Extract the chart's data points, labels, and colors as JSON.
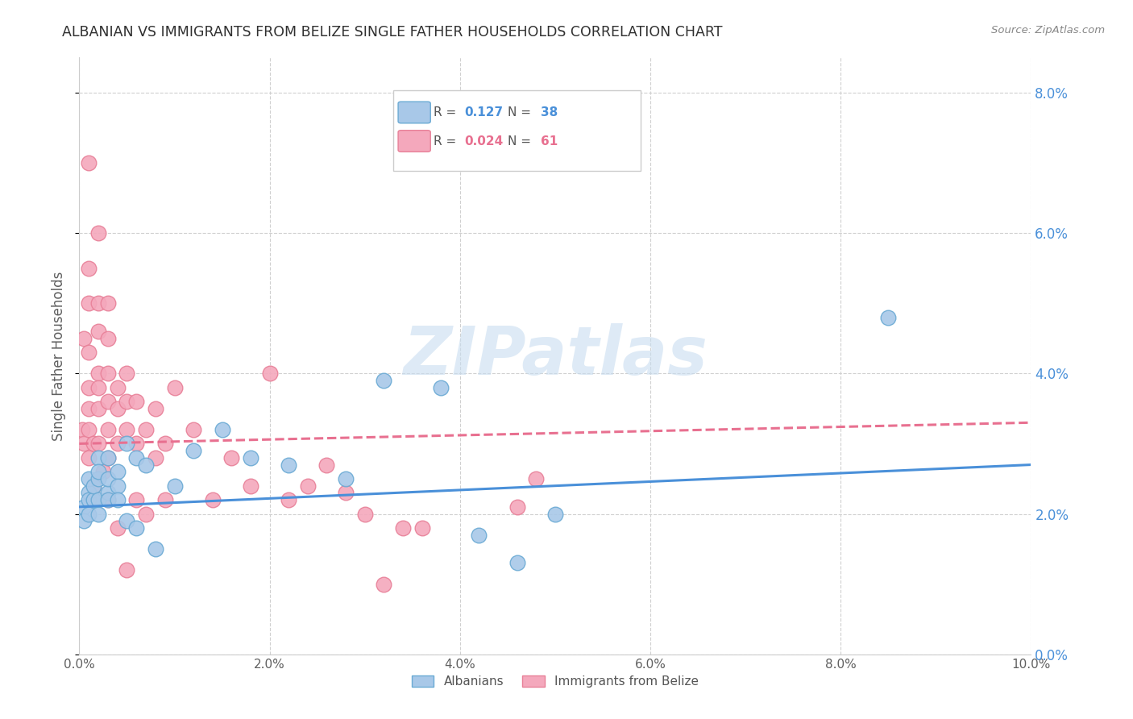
{
  "title": "ALBANIAN VS IMMIGRANTS FROM BELIZE SINGLE FATHER HOUSEHOLDS CORRELATION CHART",
  "source": "Source: ZipAtlas.com",
  "ylabel": "Single Father Households",
  "xlim": [
    0.0,
    0.1
  ],
  "ylim": [
    0.0,
    0.085
  ],
  "yticks": [
    0.0,
    0.02,
    0.04,
    0.06,
    0.08
  ],
  "xticks": [
    0.0,
    0.02,
    0.04,
    0.06,
    0.08,
    0.1
  ],
  "R_albanian": 0.127,
  "N_albanian": 38,
  "R_belize": 0.024,
  "N_belize": 61,
  "albanian_x": [
    0.0005,
    0.0005,
    0.001,
    0.001,
    0.001,
    0.001,
    0.0015,
    0.0015,
    0.002,
    0.002,
    0.002,
    0.002,
    0.002,
    0.003,
    0.003,
    0.003,
    0.003,
    0.004,
    0.004,
    0.004,
    0.005,
    0.005,
    0.006,
    0.006,
    0.007,
    0.008,
    0.01,
    0.012,
    0.015,
    0.018,
    0.022,
    0.028,
    0.032,
    0.038,
    0.042,
    0.046,
    0.05,
    0.085
  ],
  "albanian_y": [
    0.021,
    0.019,
    0.023,
    0.022,
    0.025,
    0.02,
    0.022,
    0.024,
    0.022,
    0.025,
    0.028,
    0.026,
    0.02,
    0.023,
    0.025,
    0.028,
    0.022,
    0.026,
    0.024,
    0.022,
    0.03,
    0.019,
    0.028,
    0.018,
    0.027,
    0.015,
    0.024,
    0.029,
    0.032,
    0.028,
    0.027,
    0.025,
    0.039,
    0.038,
    0.017,
    0.013,
    0.02,
    0.048
  ],
  "belize_x": [
    0.0003,
    0.0005,
    0.0005,
    0.001,
    0.001,
    0.001,
    0.001,
    0.001,
    0.001,
    0.001,
    0.001,
    0.0015,
    0.0015,
    0.002,
    0.002,
    0.002,
    0.002,
    0.002,
    0.002,
    0.002,
    0.0025,
    0.003,
    0.003,
    0.003,
    0.003,
    0.003,
    0.003,
    0.003,
    0.004,
    0.004,
    0.004,
    0.004,
    0.005,
    0.005,
    0.005,
    0.005,
    0.006,
    0.006,
    0.006,
    0.007,
    0.007,
    0.008,
    0.008,
    0.009,
    0.009,
    0.01,
    0.012,
    0.014,
    0.016,
    0.018,
    0.02,
    0.022,
    0.024,
    0.026,
    0.028,
    0.03,
    0.032,
    0.034,
    0.036,
    0.046,
    0.048
  ],
  "belize_y": [
    0.032,
    0.045,
    0.03,
    0.07,
    0.055,
    0.05,
    0.043,
    0.038,
    0.035,
    0.032,
    0.028,
    0.03,
    0.024,
    0.06,
    0.05,
    0.046,
    0.04,
    0.038,
    0.035,
    0.03,
    0.026,
    0.05,
    0.045,
    0.04,
    0.036,
    0.032,
    0.028,
    0.022,
    0.038,
    0.035,
    0.03,
    0.018,
    0.04,
    0.036,
    0.032,
    0.012,
    0.036,
    0.03,
    0.022,
    0.032,
    0.02,
    0.035,
    0.028,
    0.03,
    0.022,
    0.038,
    0.032,
    0.022,
    0.028,
    0.024,
    0.04,
    0.022,
    0.024,
    0.027,
    0.023,
    0.02,
    0.01,
    0.018,
    0.018,
    0.021,
    0.025
  ],
  "albanian_line_x": [
    0.0,
    0.1
  ],
  "albanian_line_y": [
    0.021,
    0.027
  ],
  "belize_line_x": [
    0.0,
    0.1
  ],
  "belize_line_y": [
    0.03,
    0.033
  ],
  "albanian_line_color": "#4a90d9",
  "belize_line_color": "#e87090",
  "dot_color_albanian": "#a8c8e8",
  "dot_color_belize": "#f4a8bc",
  "dot_edge_albanian": "#6aaad4",
  "dot_edge_belize": "#e88098",
  "watermark_text": "ZIPatlas",
  "watermark_color": "#c8ddf0",
  "background_color": "#ffffff",
  "grid_color": "#d0d0d0",
  "right_axis_color": "#4a90d9",
  "title_color": "#303030",
  "source_color": "#888888",
  "ylabel_color": "#606060",
  "xtick_color": "#606060",
  "legend_label_albanian": "Albanians",
  "legend_label_belize": "Immigrants from Belize"
}
